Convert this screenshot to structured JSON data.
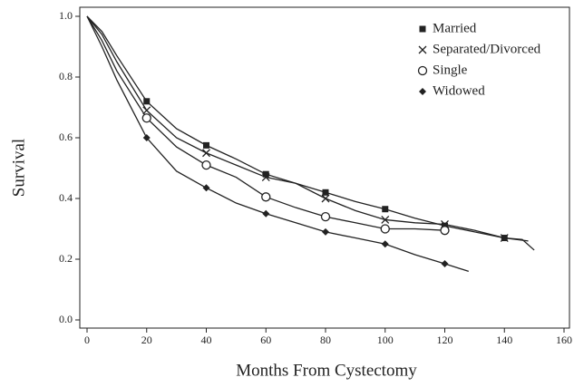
{
  "chart_data": {
    "type": "line",
    "xlabel": "Months From Cystectomy",
    "ylabel": "Survival",
    "xlim": [
      0,
      160
    ],
    "ylim": [
      0,
      1
    ],
    "xticks": [
      0,
      20,
      40,
      60,
      80,
      100,
      120,
      140,
      160
    ],
    "yticks": [
      {
        "value": 0,
        "label": "0.0"
      },
      {
        "value": 0.2,
        "label": "0.2"
      },
      {
        "value": 0.4,
        "label": "0.4"
      },
      {
        "value": 0.6,
        "label": "0.6"
      },
      {
        "value": 0.8,
        "label": "0.8"
      },
      {
        "value": 1,
        "label": "1.0"
      }
    ],
    "legend": "upper right",
    "series": [
      {
        "name": "Married",
        "color": "#222",
        "marker": "square",
        "x": [
          0,
          5,
          10,
          20,
          30,
          40,
          50,
          60,
          70,
          80,
          90,
          100,
          110,
          120,
          130,
          140,
          146,
          150
        ],
        "values": [
          1.0,
          0.95,
          0.87,
          0.72,
          0.63,
          0.575,
          0.53,
          0.48,
          0.45,
          0.42,
          0.39,
          0.365,
          0.335,
          0.31,
          0.29,
          0.27,
          0.265,
          0.23
        ]
      },
      {
        "name": "Separated/Divorced",
        "color": "#222",
        "marker": "x",
        "x": [
          0,
          5,
          10,
          20,
          30,
          40,
          50,
          60,
          70,
          80,
          90,
          100,
          110,
          120,
          130,
          140,
          148
        ],
        "values": [
          1.0,
          0.94,
          0.85,
          0.69,
          0.6,
          0.55,
          0.51,
          0.47,
          0.45,
          0.4,
          0.36,
          0.33,
          0.32,
          0.315,
          0.295,
          0.27,
          0.26
        ]
      },
      {
        "name": "Single",
        "color": "#222",
        "marker": "circle",
        "x": [
          0,
          5,
          10,
          20,
          30,
          40,
          50,
          60,
          70,
          80,
          90,
          100,
          110,
          120
        ],
        "values": [
          1.0,
          0.92,
          0.82,
          0.665,
          0.57,
          0.51,
          0.47,
          0.405,
          0.37,
          0.34,
          0.32,
          0.3,
          0.3,
          0.295
        ]
      },
      {
        "name": "Widowed",
        "color": "#222",
        "marker": "diamond",
        "x": [
          0,
          5,
          10,
          20,
          30,
          40,
          50,
          60,
          70,
          80,
          90,
          100,
          110,
          120,
          128
        ],
        "values": [
          1.0,
          0.9,
          0.79,
          0.6,
          0.49,
          0.435,
          0.385,
          0.35,
          0.32,
          0.29,
          0.27,
          0.25,
          0.215,
          0.185,
          0.16
        ]
      }
    ]
  }
}
